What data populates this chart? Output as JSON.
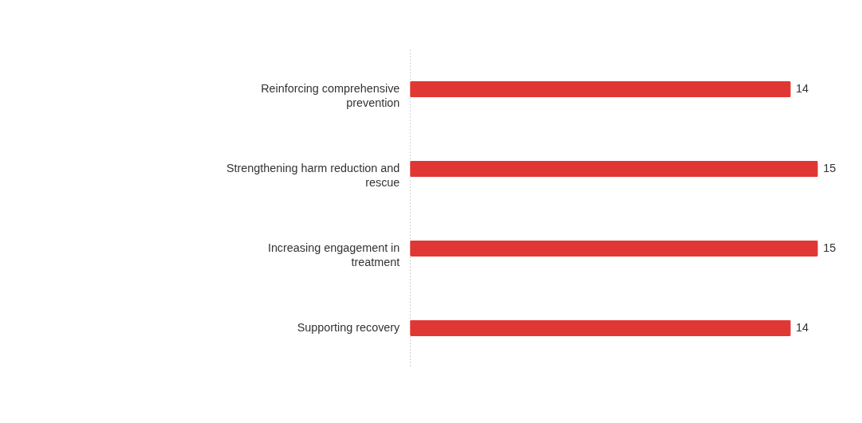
{
  "chart_data": {
    "type": "bar",
    "orientation": "horizontal",
    "data_labels": true,
    "categories": [
      "Reinforcing comprehensive prevention",
      "Strengthening harm reduction and rescue",
      "Increasing engagement in treatment",
      "Supporting recovery"
    ],
    "values": [
      14,
      15,
      15,
      14
    ],
    "color": "#e03734",
    "grid": false
  }
}
